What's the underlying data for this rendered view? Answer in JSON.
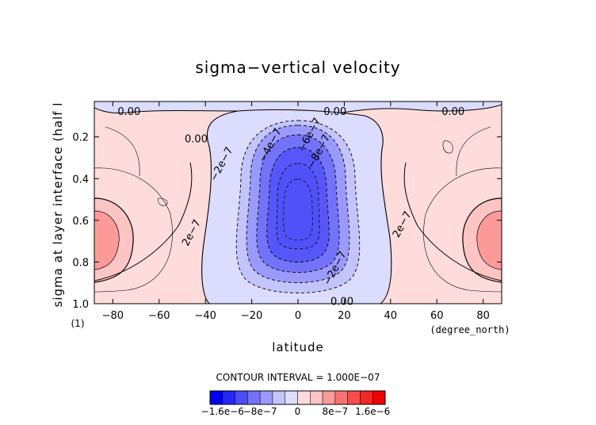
{
  "chart_data": {
    "type": "heatmap",
    "title": "sigma−vertical velocity",
    "xlabel": "latitude",
    "xlabel_units": "(degree_north)",
    "ylabel": "sigma at layer interface (half l",
    "ylabel_units": "(1)",
    "xlim": [
      -88,
      88
    ],
    "ylim": [
      1.0,
      0.03
    ],
    "x_ticks": [
      -80,
      -60,
      -40,
      -20,
      0,
      20,
      40,
      60,
      80
    ],
    "y_ticks": [
      0.2,
      0.4,
      0.6,
      0.8,
      1.0
    ],
    "x_tick_labels": [
      "−80",
      "−60",
      "−40",
      "−20",
      "0",
      "20",
      "40",
      "60",
      "80"
    ],
    "y_tick_labels": [
      "0.2",
      "0.4",
      "0.6",
      "0.8",
      "1.0"
    ],
    "contour_interval_text": "CONTOUR INTERVAL = 1.000E−07",
    "contour_labels": [
      {
        "text": "0.00",
        "lat": -73,
        "sigma": 0.08
      },
      {
        "text": "0.00",
        "lat": 16,
        "sigma": 0.08
      },
      {
        "text": "0.00",
        "lat": 67,
        "sigma": 0.08
      },
      {
        "text": "0.00",
        "lat": -44,
        "sigma": 0.21
      },
      {
        "text": "0.00",
        "lat": 19,
        "sigma": 0.99
      },
      {
        "text": "−2e−7",
        "lat": -33,
        "sigma": 0.33
      },
      {
        "text": "−4e−7",
        "lat": -12,
        "sigma": 0.24
      },
      {
        "text": "−6e−7",
        "lat": 5,
        "sigma": 0.19
      },
      {
        "text": "−8e−7",
        "lat": 9,
        "sigma": 0.27
      },
      {
        "text": "−2e−7",
        "lat": 16,
        "sigma": 0.83
      },
      {
        "text": "2e−7",
        "lat": -46,
        "sigma": 0.66
      },
      {
        "text": "2e−7",
        "lat": 45,
        "sigma": 0.62
      }
    ],
    "colorbar": {
      "colors": [
        "#0000f0",
        "#2626f5",
        "#4d4df8",
        "#7373fa",
        "#9a9afc",
        "#c4c4fd",
        "#dcdcff",
        "#ffdcdc",
        "#fdc4c4",
        "#fc9a9a",
        "#fa7373",
        "#f84d4d",
        "#f52626",
        "#f00000"
      ],
      "tick_labels": [
        "−1.6e−6",
        "−8e−7",
        "0",
        "8e−7",
        "1.6e−6"
      ]
    },
    "field_description": {
      "central_min_value": -1e-06,
      "central_min_lat": 0,
      "central_min_sigma": 0.55,
      "polar_max_value": 7e-07,
      "polar_max_lat": [
        -85,
        85
      ],
      "polar_max_sigma": 0.7
    }
  }
}
